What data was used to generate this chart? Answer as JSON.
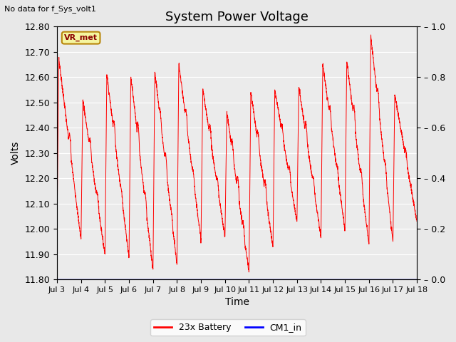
{
  "title": "System Power Voltage",
  "top_left_text": "No data for f_Sys_volt1",
  "ylabel_left": "Volts",
  "xlabel": "Time",
  "ylim_left": [
    11.8,
    12.8
  ],
  "ylim_right": [
    0.0,
    1.0
  ],
  "yticks_left": [
    11.8,
    11.9,
    12.0,
    12.1,
    12.2,
    12.3,
    12.4,
    12.5,
    12.6,
    12.7,
    12.8
  ],
  "yticks_right": [
    0.0,
    0.2,
    0.4,
    0.6,
    0.8,
    1.0
  ],
  "xtick_labels": [
    "Jul 3",
    "Jul 4",
    "Jul 5",
    "Jul 6",
    "Jul 7",
    "Jul 8",
    "Jul 9",
    "Jul 10",
    "Jul 11",
    "Jul 12",
    "Jul 13",
    "Jul 14",
    "Jul 15",
    "Jul 16",
    "Jul 17",
    "Jul 18"
  ],
  "legend_labels": [
    "23x Battery",
    "CM1_in"
  ],
  "legend_colors": [
    "red",
    "blue"
  ],
  "vr_met_label": "VR_met",
  "background_color": "#e8e8e8",
  "plot_bg_color": "#ebebeb",
  "line_color_battery": "red",
  "line_color_cm1": "blue",
  "title_fontsize": 13,
  "axis_fontsize": 10,
  "tick_fontsize": 9
}
